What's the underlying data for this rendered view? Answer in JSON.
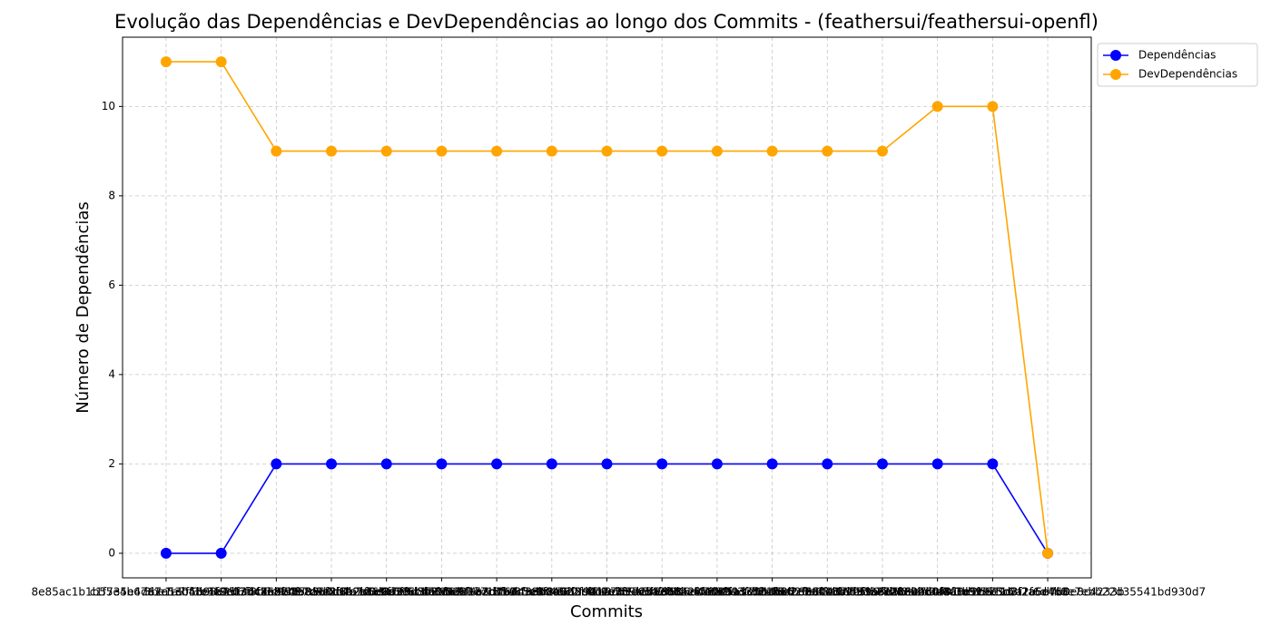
{
  "chart_data": {
    "type": "line",
    "title": "Evolução das Dependências e DevDependências ao longo dos Commits - (feathersui/feathersui-openfl)",
    "xlabel": "Commits",
    "ylabel": "Número de Dependências",
    "categories": [
      "8e85ac1b1b55e4b67a1e53b48c1f2e03d4a6b7c8",
      "c1f735e4d67a1e0f3b3e9d1a6c8b2e4f7a9d0c1e",
      "3be1a7f5b98e2d6f4c1a9b0e7d3c5f8a2b6e4d19",
      "e4b25f7f3b5c9d1e8a6f2c4b7d0e3a9f5c1b8d62",
      "f7e8f98503c4d6b2a1e9f7c5d3b8a0e6f4c2d1b7",
      "c9e2b7a1f5d8e3c6b4a0f9d2e7c1b5a8f3d6e402",
      "a61e6f3d8b2c5e9f1a7d4b0c3e6f8a2d5b9c1e73",
      "d5f9a2b1e7c3f6d4a8b0e5c2f9d1a7b3e6c4f858",
      "b3d7e1c5a9f2d6b8e4c0a3f7d1b5e9c2a6f4d801",
      "e8c4a6f2d0b7e3c9a5f1d8b4e2c6a0f9d3b7e516",
      "f1b9d3e7c5a2f8b6d4e0c9a3f7b1d5e2c8a6f437",
      "a4e6c8b2f0d9e5a3c7b1f6d2e8a4c0b9f5d3e722",
      "c7d3f5a1e9b4c8d2f6a0e3b7c5d9f1a8e2b6c491",
      "d2a8e4c6b0f3a9d5e1c7b2f8a4d0e6c3b9f5a116",
      "e5c1b7d9f3a6e2c8b4d0f7a1e5c9b3d8f2a6e468",
      "f9a3d5b1e7c0f4a8d2b6e9c3f1a5d7b0e8c4233b",
      "b6e02c4a8f1d39e75c0a2f6d4b8e7ebb22d35541bd930d7"
    ],
    "series": [
      {
        "name": "Dependências",
        "color": "#0000ff",
        "values": [
          0,
          0,
          2,
          2,
          2,
          2,
          2,
          2,
          2,
          2,
          2,
          2,
          2,
          2,
          2,
          2,
          0
        ]
      },
      {
        "name": "DevDependências",
        "color": "#ffa500",
        "values": [
          11,
          11,
          9,
          9,
          9,
          9,
          9,
          9,
          9,
          9,
          9,
          9,
          9,
          9,
          10,
          10,
          0
        ]
      }
    ],
    "ylim": [
      -0.55,
      11.55
    ],
    "yticks": [
      0,
      2,
      4,
      6,
      8,
      10
    ],
    "grid": true,
    "legend": "upper right outside"
  }
}
